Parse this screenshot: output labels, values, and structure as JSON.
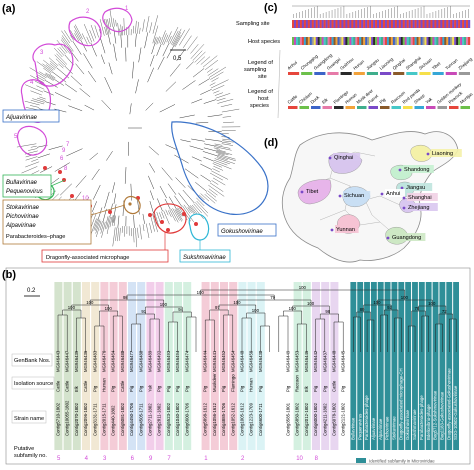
{
  "panels": {
    "a": "(a)",
    "b": "(b)",
    "c": "(c)",
    "d": "(d)"
  },
  "panel_a": {
    "scale": "0.5",
    "numbers": [
      "1",
      "2",
      "3",
      "4",
      "5",
      "6",
      "7",
      "8",
      "9",
      "10"
    ],
    "subfamilies": {
      "aljuavirinae": "Aljuavirinae",
      "bullavirinae": "Bullavirinae",
      "pequenovirus": "Pequenovirus",
      "stokavirinae": "Stokavirinae",
      "pichovirinae": "Pichovirinae",
      "alpavirinae": "Alpavirinae",
      "parabacteroides": "Parabacteroides–phage",
      "dragonfly": "Dragonfly-associated microphage",
      "sukshmavirinae": "Sukshmavirinae",
      "gokushovirinae": "Gokushovirinae"
    }
  },
  "panel_c": {
    "rows": [
      "Sampling site",
      "Host species"
    ],
    "legend_site_title": "Legend of sampling site",
    "legend_host_title": "Legend of host species",
    "sites": [
      "Anhui",
      "Chongqing",
      "Guangdong",
      "Guangxi",
      "Guizhou",
      "Hunan",
      "Jiangsu",
      "Liaoning",
      "Qinghai",
      "Shanghai",
      "Sichuan",
      "Tibet",
      "Yunnan",
      "Zhejiang"
    ],
    "hosts": [
      "Cattle",
      "Chicken",
      "Duck",
      "Elk",
      "Flamingo",
      "Human",
      "Musk deer",
      "Parrot",
      "Pig",
      "Raccoon",
      "Red panda",
      "Sheep",
      "Yak",
      "Golden monkey",
      "Peacock",
      "Muntjac"
    ]
  },
  "panel_d": {
    "provinces": [
      "Liaoning",
      "Qinghai",
      "Shandong",
      "Jiangsu",
      "Tibet",
      "Sichuan",
      "Anhui",
      "Shanghai",
      "Zhejiang",
      "Yunnan",
      "Guangdong"
    ]
  },
  "panel_b": {
    "scale": "0.2",
    "row_labels": [
      "GenBank Nos.",
      "Isolation source",
      "Strain name",
      "Putative subfamily no."
    ],
    "bootstrap": [
      "100",
      "100",
      "91",
      "94",
      "97",
      "100",
      "100",
      "98",
      "89",
      "92",
      "78",
      "72",
      "100",
      "100",
      "100",
      "100",
      "100",
      "100",
      "98",
      "79",
      "100",
      "100",
      "100",
      "99"
    ],
    "legend": "Identified subfamily in Microviridae",
    "columns": [
      {
        "acc": "MG946443",
        "source": "Cattle",
        "strain": "Contig5710-1802",
        "no": "5"
      },
      {
        "acc": "MG946447",
        "source": "Cattle",
        "strain": "Contig10055-1802",
        "no": ""
      },
      {
        "acc": "MG946439",
        "source": "Elk",
        "strain": "Contig2070-1802",
        "no": ""
      },
      {
        "acc": "MG946436",
        "source": "Cattle",
        "strain": "Contig2096-1802",
        "no": "4"
      },
      {
        "acc": "MG946483",
        "source": "Pig",
        "strain": "Contig3131-1711",
        "no": ""
      },
      {
        "acc": "MG946476",
        "source": "Human",
        "strain": "Contig2015-1711",
        "no": "3"
      },
      {
        "acc": "MG946464",
        "source": "Pig",
        "strain": "Contig440-1802",
        "no": ""
      },
      {
        "acc": "MG946480",
        "source": "Cattle",
        "strain": "Contig5081-1802",
        "no": ""
      },
      {
        "acc": "MG946477",
        "source": "Pig",
        "strain": "Contig4450-1706",
        "no": "6"
      },
      {
        "acc": "MG946488",
        "source": "Pig",
        "strain": "Contig4505-1711",
        "no": ""
      },
      {
        "acc": "MG946489",
        "source": "Yak",
        "strain": "Contig2711-1802",
        "no": "9"
      },
      {
        "acc": "MG946492",
        "source": "Pig",
        "strain": "Contig2811-1802",
        "no": ""
      },
      {
        "acc": "MG946493",
        "source": "Pig",
        "strain": "Contig5523-1802",
        "no": "7"
      },
      {
        "acc": "MG946494",
        "source": "Pig",
        "strain": "Contig1040-1802",
        "no": ""
      },
      {
        "acc": "MG946474",
        "source": "Pig",
        "strain": "Contig6600-1706",
        "no": ""
      },
      {
        "acc": "",
        "source": "",
        "strain": "",
        "no": ""
      },
      {
        "acc": "MG946444",
        "source": "Pig",
        "strain": "Contig5898-1612",
        "no": "1"
      },
      {
        "acc": "MG946441",
        "source": "Muskdeer",
        "strain": "Contig1056-1612",
        "no": ""
      },
      {
        "acc": "MG946452",
        "source": "Pig",
        "strain": "Contig4885-1706",
        "no": ""
      },
      {
        "acc": "MG946454",
        "source": "Flamingo",
        "strain": "Contig1052-1612",
        "no": ""
      },
      {
        "acc": "MG946448",
        "source": "Pig",
        "strain": "Contig1005-1612",
        "no": "2"
      },
      {
        "acc": "MG946450",
        "source": "Human",
        "strain": "Contig1223-1709",
        "no": ""
      },
      {
        "acc": "MG946430",
        "source": "Pig",
        "strain": "Contig6600-1711",
        "no": ""
      },
      {
        "acc": "",
        "source": "",
        "strain": "",
        "no": ""
      },
      {
        "acc": "",
        "source": "",
        "strain": "",
        "no": ""
      },
      {
        "acc": "MG946449",
        "source": "Pig",
        "strain": "Contig3585-1801",
        "no": ""
      },
      {
        "acc": "MG946453",
        "source": "Raccoon",
        "strain": "Contig5850-1802",
        "no": "10"
      },
      {
        "acc": "MG946446",
        "source": "Elk",
        "strain": "Contig2012-1802",
        "no": ""
      },
      {
        "acc": "MG946442",
        "source": "Pig",
        "strain": "Contig6000-1802",
        "no": "8"
      },
      {
        "acc": "MG946437",
        "source": "Pig",
        "strain": "Contig4211-1802",
        "no": ""
      },
      {
        "acc": "MG946448",
        "source": "Cattle",
        "strain": "Contig5078-1802",
        "no": ""
      },
      {
        "acc": "MG946445",
        "source": "Pig",
        "strain": "Contig2121-1802",
        "no": ""
      }
    ],
    "reference_clades": [
      "Bullavirinae",
      "Pequenovirus",
      "Parabacteroides-phage",
      "Aljuavirinae",
      "Alpavirinae",
      "Pichovirinae",
      "Stokavirinae",
      "Dragonfly-associated microphage-CH",
      "Gokushovirinae",
      "Sukshmavirinae",
      "Parabacteroides-phage",
      "Bdellovibrio-phage",
      "Bog5712-Sukshmovirinae",
      "Bog1183-Gokushovirinae",
      "Dragonfly-associated-Gokushovirinae",
      "SOG-10502-Gokushovirinae"
    ]
  },
  "colors": {
    "magenta": "#d24ad8",
    "pink": "#f3b8cd",
    "green": "#36b55a",
    "brown": "#b07a3a",
    "red": "#e03a3a",
    "blue": "#3a72c8",
    "cyan": "#2fb7d6",
    "teal": "#2f8f98",
    "gray": "#c9ccc9"
  }
}
